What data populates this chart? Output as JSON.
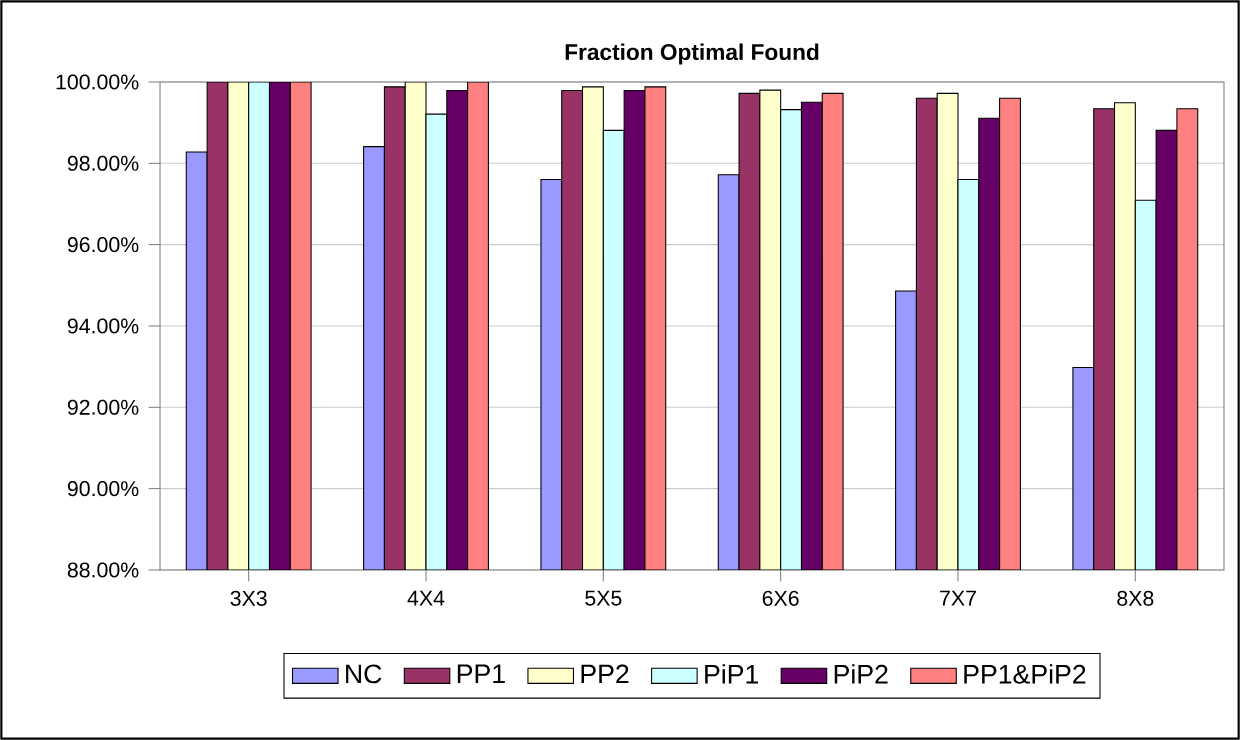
{
  "chart_data": {
    "type": "bar",
    "title": "Fraction Optimal Found",
    "categories": [
      "3X3",
      "4X4",
      "5X5",
      "6X6",
      "7X7",
      "8X8"
    ],
    "series": [
      {
        "name": "NC",
        "color": "#9999ff",
        "values": [
          98.28,
          98.41,
          97.6,
          97.72,
          94.86,
          92.98
        ]
      },
      {
        "name": "PP1",
        "color": "#993366",
        "values": [
          100,
          99.88,
          99.79,
          99.72,
          99.6,
          99.34
        ]
      },
      {
        "name": "PP2",
        "color": "#ffffcc",
        "values": [
          100,
          100,
          99.88,
          99.8,
          99.72,
          99.49
        ]
      },
      {
        "name": "PiP1",
        "color": "#ccffff",
        "values": [
          100,
          99.21,
          98.81,
          99.32,
          97.6,
          97.09
        ]
      },
      {
        "name": "PiP2",
        "color": "#660066",
        "values": [
          100,
          99.79,
          99.79,
          99.5,
          99.11,
          98.81
        ]
      },
      {
        "name": "PP1&PiP2",
        "color": "#ff8080",
        "values": [
          100,
          100,
          99.88,
          99.72,
          99.6,
          99.34
        ]
      }
    ],
    "ylim": [
      88,
      100
    ],
    "yticks": [
      {
        "value": 88,
        "label": "88.00%"
      },
      {
        "value": 90,
        "label": "90.00%"
      },
      {
        "value": 92,
        "label": "92.00%"
      },
      {
        "value": 94,
        "label": "94.00%"
      },
      {
        "value": 96,
        "label": "96.00%"
      },
      {
        "value": 98,
        "label": "98.00%"
      },
      {
        "value": 100,
        "label": "100.00%"
      }
    ],
    "grid": "y",
    "legend": "bottom"
  }
}
